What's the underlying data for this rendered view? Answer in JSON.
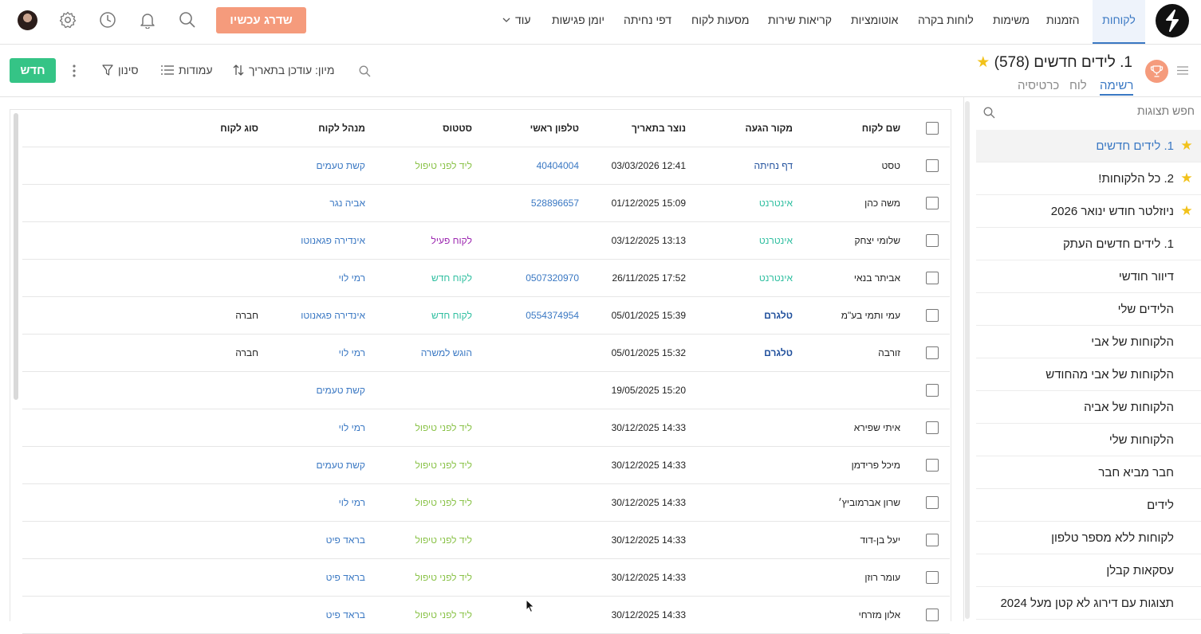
{
  "nav": {
    "items": [
      {
        "label": "לקוחות",
        "active": true
      },
      {
        "label": "הזמנות"
      },
      {
        "label": "משימות"
      },
      {
        "label": "לוחות בקרה"
      },
      {
        "label": "אוטומציות"
      },
      {
        "label": "קריאות שירות"
      },
      {
        "label": "מסעות לקוח"
      },
      {
        "label": "דפי נחיתה"
      },
      {
        "label": "יומן פגישות"
      },
      {
        "label": "עוד"
      }
    ],
    "upgrade_label": "שדרג עכשיו"
  },
  "view": {
    "title": "1. לידים חדשים",
    "count": "(578)",
    "tabs": [
      "רשימה",
      "לוח",
      "כרטיסיה"
    ],
    "sort_label": "מיון: עודכן בתאריך",
    "columns_label": "עמודות",
    "filter_label": "סינון",
    "new_label": "חדש"
  },
  "sidebar": {
    "search_placeholder": "חפש תצוגות",
    "items": [
      {
        "label": "1. לידים חדשים",
        "starred": true,
        "selected": true
      },
      {
        "label": "2. כל הלקוחות!",
        "starred": true
      },
      {
        "label": "ניוזלטר חודש ינואר 2026",
        "starred": true
      },
      {
        "label": "1. לידים חדשים העתק"
      },
      {
        "label": "דיוור חודשי"
      },
      {
        "label": "הלידים שלי"
      },
      {
        "label": "הלקוחות של אבי"
      },
      {
        "label": "הלקוחות של אבי מהחודש"
      },
      {
        "label": "הלקוחות של אביה"
      },
      {
        "label": "הלקוחות שלי"
      },
      {
        "label": "חבר מביא חבר"
      },
      {
        "label": "לידים"
      },
      {
        "label": "לקוחות ללא מספר טלפון"
      },
      {
        "label": "עסקאות קבלן"
      },
      {
        "label": "תצוגות עם דירוג לא קטן מעל 2024"
      }
    ]
  },
  "table": {
    "headers": {
      "name": "שם לקוח",
      "source": "מקור הגעה",
      "created": "נוצר בתאריך",
      "phone": "טלפון ראשי",
      "status": "סטטוס",
      "manager": "מנהל לקוח",
      "type": "סוג לקוח"
    },
    "rows": [
      {
        "name": "טסט",
        "source": "דף נחיתה",
        "source_style": "navy",
        "created": "12:41 03/03/2026",
        "phone": "40404004",
        "status": "ליד לפני טיפול",
        "status_style": "lime",
        "manager": "קשת טעמים",
        "type": ""
      },
      {
        "name": "משה כהן",
        "source": "אינטרנט",
        "source_style": "green",
        "created": "15:09 01/12/2025",
        "phone": "528896657",
        "status": "",
        "status_style": "",
        "manager": "אביה נגר",
        "type": ""
      },
      {
        "name": "שלומי יצחק",
        "source": "אינטרנט",
        "source_style": "green",
        "created": "13:13 03/12/2025",
        "phone": "",
        "status": "לקוח פעיל",
        "status_style": "purple",
        "manager": "אינדירה פגאנוטו",
        "type": ""
      },
      {
        "name": "אביתר בנאי",
        "source": "אינטרנט",
        "source_style": "green",
        "created": "17:52 26/11/2025",
        "phone": "0507320970",
        "status": "לקוח חדש",
        "status_style": "green",
        "manager": "רמי לוי",
        "type": ""
      },
      {
        "name": "עמי ותמי בע\"מ",
        "source": "טלגרם",
        "source_style": "navybold",
        "created": "15:39 05/01/2025",
        "phone": "0554374954",
        "status": "לקוח חדש",
        "status_style": "green",
        "manager": "אינדירה פגאנוטו",
        "type": "חברה"
      },
      {
        "name": "זורבה",
        "source": "טלגרם",
        "source_style": "navybold",
        "created": "15:32 05/01/2025",
        "phone": "",
        "status": "הוגש למשרה",
        "status_style": "blue",
        "manager": "רמי לוי",
        "type": "חברה"
      },
      {
        "name": "",
        "source": "",
        "source_style": "",
        "created": "15:20 19/05/2025",
        "phone": "",
        "status": "",
        "status_style": "",
        "manager": "קשת טעמים",
        "type": ""
      },
      {
        "name": "איתי שפירא",
        "source": "",
        "source_style": "",
        "created": "14:33 30/12/2025",
        "phone": "",
        "status": "ליד לפני טיפול",
        "status_style": "lime",
        "manager": "רמי לוי",
        "type": ""
      },
      {
        "name": "מיכל פרידמן",
        "source": "",
        "source_style": "",
        "created": "14:33 30/12/2025",
        "phone": "",
        "status": "ליד לפני טיפול",
        "status_style": "lime",
        "manager": "קשת טעמים",
        "type": ""
      },
      {
        "name": "שרון אברמוביץ׳",
        "source": "",
        "source_style": "",
        "created": "14:33 30/12/2025",
        "phone": "",
        "status": "ליד לפני טיפול",
        "status_style": "lime",
        "manager": "רמי לוי",
        "type": ""
      },
      {
        "name": "יעל בן-דוד",
        "source": "",
        "source_style": "",
        "created": "14:33 30/12/2025",
        "phone": "",
        "status": "ליד לפני טיפול",
        "status_style": "lime",
        "manager": "בראד פיט",
        "type": ""
      },
      {
        "name": "עומר רוזן",
        "source": "",
        "source_style": "",
        "created": "14:33 30/12/2025",
        "phone": "",
        "status": "ליד לפני טיפול",
        "status_style": "lime",
        "manager": "בראד פיט",
        "type": ""
      },
      {
        "name": "אלון מזרחי",
        "source": "",
        "source_style": "",
        "created": "14:33 30/12/2025",
        "phone": "",
        "status": "ליד לפני טיפול",
        "status_style": "lime",
        "manager": "בראד פיט",
        "type": ""
      }
    ]
  },
  "colors": {
    "accent": "#3a78c3",
    "upgrade": "#f59b7c",
    "new_button": "#35c486",
    "star": "#f2c21b"
  }
}
